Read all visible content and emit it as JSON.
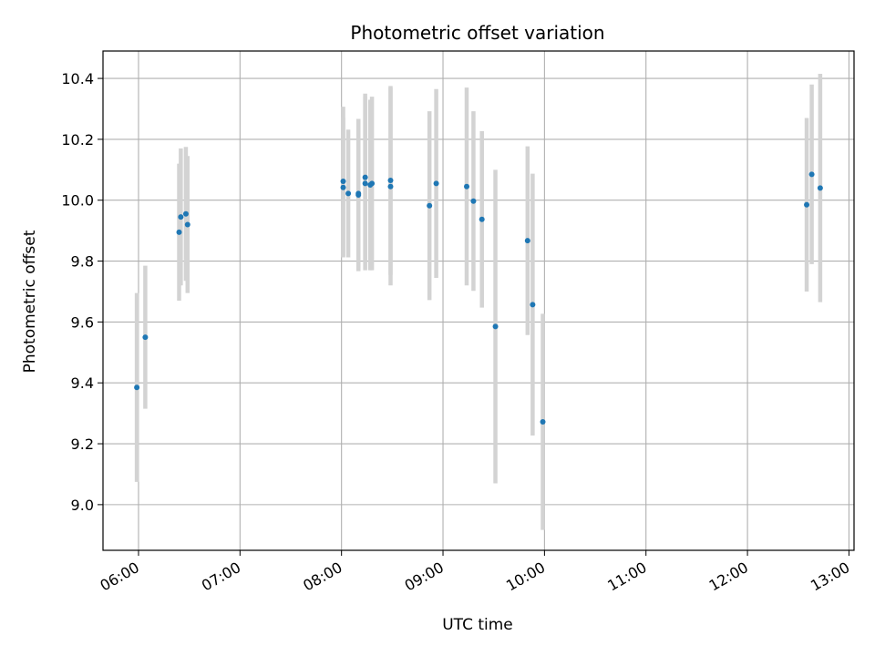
{
  "chart_data": {
    "type": "scatter",
    "title": "Photometric offset variation",
    "xlabel": "UTC time",
    "ylabel": "Photometric offset",
    "x_unit": "time (HH:MM, UTC)",
    "xlim": [
      "05:39",
      "13:03"
    ],
    "ylim": [
      8.85,
      10.49
    ],
    "x_ticks": [
      "06:00",
      "07:00",
      "08:00",
      "09:00",
      "10:00",
      "11:00",
      "12:00",
      "13:00"
    ],
    "y_ticks": [
      9.0,
      9.2,
      9.4,
      9.6,
      9.8,
      10.0,
      10.2,
      10.4
    ],
    "grid": true,
    "legend": "none",
    "colors": {
      "point": "#1f77b4",
      "errorbar": "#d3d3d3",
      "grid": "#b0b0b0"
    },
    "points": [
      {
        "x": "05:59",
        "y": 9.385,
        "err": 0.31
      },
      {
        "x": "06:04",
        "y": 9.55,
        "err": 0.235
      },
      {
        "x": "06:24",
        "y": 9.895,
        "err": 0.225
      },
      {
        "x": "06:25",
        "y": 9.945,
        "err": 0.225
      },
      {
        "x": "06:28",
        "y": 9.955,
        "err": 0.22
      },
      {
        "x": "06:29",
        "y": 9.92,
        "err": 0.225
      },
      {
        "x": "08:01",
        "y": 10.062,
        "err": 0.245
      },
      {
        "x": "08:01",
        "y": 10.042,
        "err": 0.23
      },
      {
        "x": "08:04",
        "y": 10.022,
        "err": 0.21
      },
      {
        "x": "08:10",
        "y": 10.017,
        "err": 0.25
      },
      {
        "x": "08:10",
        "y": 10.022,
        "err": 0.245
      },
      {
        "x": "08:14",
        "y": 10.075,
        "err": 0.275
      },
      {
        "x": "08:14",
        "y": 10.055,
        "err": 0.285
      },
      {
        "x": "08:17",
        "y": 10.05,
        "err": 0.28
      },
      {
        "x": "08:18",
        "y": 10.055,
        "err": 0.285
      },
      {
        "x": "08:29",
        "y": 10.045,
        "err": 0.325
      },
      {
        "x": "08:29",
        "y": 10.065,
        "err": 0.31
      },
      {
        "x": "08:52",
        "y": 9.982,
        "err": 0.31
      },
      {
        "x": "08:56",
        "y": 10.055,
        "err": 0.31
      },
      {
        "x": "09:14",
        "y": 10.045,
        "err": 0.325
      },
      {
        "x": "09:18",
        "y": 9.997,
        "err": 0.295
      },
      {
        "x": "09:23",
        "y": 9.937,
        "err": 0.29
      },
      {
        "x": "09:31",
        "y": 9.585,
        "err": 0.515
      },
      {
        "x": "09:50",
        "y": 9.867,
        "err": 0.31
      },
      {
        "x": "09:53",
        "y": 9.657,
        "err": 0.43
      },
      {
        "x": "09:59",
        "y": 9.272,
        "err": 0.355
      },
      {
        "x": "12:35",
        "y": 9.985,
        "err": 0.285
      },
      {
        "x": "12:38",
        "y": 10.085,
        "err": 0.295
      },
      {
        "x": "12:43",
        "y": 10.04,
        "err": 0.375
      }
    ]
  }
}
